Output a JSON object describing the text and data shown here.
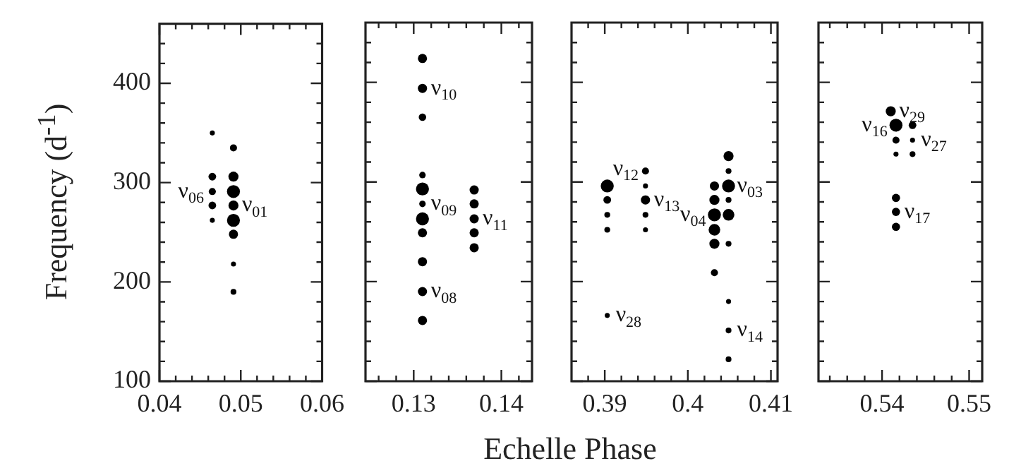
{
  "chart_data": [
    {
      "type": "bubble",
      "ylabel": "Frequency (d$^{-1}$)",
      "xlabel": "Echelle Phase",
      "color": "#000000",
      "x": [
        0.0465,
        0.0465,
        0.0465,
        0.0465,
        0.0465,
        0.0491,
        0.0491,
        0.0491,
        0.0491,
        0.0491,
        0.0491,
        0.0491,
        0.0491
      ],
      "values": [
        350,
        306,
        291,
        277,
        262,
        335,
        306,
        291,
        277,
        262,
        248,
        218,
        190
      ],
      "sizes": [
        0.15,
        0.35,
        0.3,
        0.35,
        0.15,
        0.3,
        0.6,
        1,
        0.6,
        1,
        0.5,
        0.15,
        0.2
      ],
      "xlim": [
        0.04,
        0.06
      ],
      "xticks": [
        0.04,
        {
          "value": 0.042,
          "label": null
        },
        {
          "value": 0.044,
          "label": null
        },
        {
          "value": 0.046,
          "label": null
        },
        {
          "value": 0.048,
          "label": null
        },
        0.05,
        {
          "value": 0.052,
          "label": null
        },
        {
          "value": 0.054,
          "label": null
        },
        {
          "value": 0.056,
          "label": null
        },
        {
          "value": 0.058,
          "label": null
        },
        0.06
      ],
      "ylim": [
        100,
        460
      ],
      "yticks": [
        100,
        {
          "value": 120,
          "label": null
        },
        {
          "value": 140,
          "label": null
        },
        {
          "value": 160,
          "label": null
        },
        {
          "value": 180,
          "label": null
        },
        200,
        {
          "value": 220,
          "label": null
        },
        {
          "value": 240,
          "label": null
        },
        {
          "value": 260,
          "label": null
        },
        {
          "value": 280,
          "label": null
        },
        300,
        {
          "value": 320,
          "label": null
        },
        {
          "value": 340,
          "label": null
        },
        {
          "value": 360,
          "label": null
        },
        {
          "value": 380,
          "label": null
        },
        400,
        {
          "value": 420,
          "label": null
        },
        {
          "value": 440,
          "label": null
        }
      ],
      "annotations": [
        {
          "text": "ν$_{06}$",
          "x": 0.0465,
          "y": 291
        },
        {
          "text": "ν$_{01}$",
          "x": 0.0491,
          "y": 277
        }
      ]
    },
    {
      "type": "bubble",
      "color": "#000000",
      "tick_labels": "x",
      "x": [
        0.131,
        0.131,
        0.131,
        0.131,
        0.131,
        0.131,
        0.131,
        0.131,
        0.131,
        0.131,
        0.131,
        0.1369,
        0.1369,
        0.1369,
        0.1369,
        0.1369
      ],
      "values": [
        424,
        394,
        365,
        307,
        293,
        278,
        263,
        249,
        220,
        190,
        161,
        292,
        278,
        263,
        249,
        234
      ],
      "sizes": [
        0.5,
        0.5,
        0.33,
        0.25,
        1,
        0.25,
        1,
        0.5,
        0.5,
        0.5,
        0.5,
        0.5,
        0.5,
        0.5,
        0.5,
        0.5
      ],
      "xlim": [
        0.1245,
        0.1435
      ],
      "xticks": [
        {
          "value": 0.126,
          "label": null
        },
        {
          "value": 0.128,
          "label": null
        },
        0.13,
        {
          "value": 0.132,
          "label": null
        },
        {
          "value": 0.134,
          "label": null
        },
        {
          "value": 0.136,
          "label": null
        },
        {
          "value": 0.138,
          "label": null
        },
        0.14,
        {
          "value": 0.142,
          "label": null
        }
      ],
      "ylim": [
        100,
        460
      ],
      "yticks": [
        100,
        {
          "value": 120,
          "label": null
        },
        {
          "value": 140,
          "label": null
        },
        {
          "value": 160,
          "label": null
        },
        {
          "value": 180,
          "label": null
        },
        200,
        {
          "value": 220,
          "label": null
        },
        {
          "value": 240,
          "label": null
        },
        {
          "value": 260,
          "label": null
        },
        {
          "value": 280,
          "label": null
        },
        300,
        {
          "value": 320,
          "label": null
        },
        {
          "value": 340,
          "label": null
        },
        {
          "value": 360,
          "label": null
        },
        {
          "value": 380,
          "label": null
        },
        400,
        {
          "value": 420,
          "label": null
        },
        {
          "value": 440,
          "label": null
        }
      ],
      "annotations": [
        {
          "text": "ν$_{10}$",
          "x": 0.131,
          "y": 394
        },
        {
          "text": "ν$_{09}$",
          "x": 0.131,
          "y": 278
        },
        {
          "text": "ν$_{08}$",
          "x": 0.131,
          "y": 190
        },
        {
          "text": "ν$_{11}$",
          "x": 0.1369,
          "y": 263
        }
      ]
    },
    {
      "type": "bubble",
      "color": "#000000",
      "tick_labels": "x",
      "x": [
        0.3903,
        0.3903,
        0.3903,
        0.3903,
        0.3903,
        0.3949,
        0.3949,
        0.3949,
        0.3949,
        0.3949,
        0.4032,
        0.4032,
        0.4032,
        0.4032,
        0.4032,
        0.4032,
        0.4049,
        0.4049,
        0.4049,
        0.4049,
        0.4049,
        0.4049,
        0.4049,
        0.4049,
        0.4049
      ],
      "values": [
        296,
        282,
        267,
        252,
        166,
        311,
        296,
        282,
        267,
        252,
        296,
        282,
        267,
        252,
        238,
        209,
        326,
        311,
        296,
        282,
        267,
        238,
        180,
        151,
        122
      ],
      "sizes": [
        1,
        0.35,
        0.2,
        0.2,
        0.15,
        0.3,
        0.15,
        0.5,
        0.2,
        0.15,
        0.5,
        0.6,
        1,
        0.8,
        0.6,
        0.3,
        0.6,
        0.2,
        1,
        0.2,
        0.8,
        0.2,
        0.15,
        0.2,
        0.2
      ],
      "xlim": [
        0.386,
        0.4108
      ],
      "xticks": [
        {
          "value": 0.388,
          "label": null
        },
        0.39,
        {
          "value": 0.392,
          "label": null
        },
        {
          "value": 0.394,
          "label": null
        },
        {
          "value": 0.396,
          "label": null
        },
        {
          "value": 0.398,
          "label": null
        },
        0.4,
        {
          "value": 0.402,
          "label": null
        },
        {
          "value": 0.404,
          "label": null
        },
        {
          "value": 0.406,
          "label": null
        },
        {
          "value": 0.408,
          "label": null
        },
        0.41
      ],
      "ylim": [
        100,
        460
      ],
      "yticks": [
        100,
        {
          "value": 120,
          "label": null
        },
        {
          "value": 140,
          "label": null
        },
        {
          "value": 160,
          "label": null
        },
        {
          "value": 180,
          "label": null
        },
        200,
        {
          "value": 220,
          "label": null
        },
        {
          "value": 240,
          "label": null
        },
        {
          "value": 260,
          "label": null
        },
        {
          "value": 280,
          "label": null
        },
        300,
        {
          "value": 320,
          "label": null
        },
        {
          "value": 340,
          "label": null
        },
        {
          "value": 360,
          "label": null
        },
        {
          "value": 380,
          "label": null
        },
        400,
        {
          "value": 420,
          "label": null
        },
        {
          "value": 440,
          "label": null
        }
      ],
      "annotations": [
        {
          "text": "ν$_{12}$",
          "x": 0.3903,
          "y": 296
        },
        {
          "text": "ν$_{13}$",
          "x": 0.3949,
          "y": 282
        },
        {
          "text": "ν$_{04}$",
          "x": 0.4032,
          "y": 267
        },
        {
          "text": "ν$_{03}$",
          "x": 0.4049,
          "y": 296
        },
        {
          "text": "ν$_{28}$",
          "x": 0.3903,
          "y": 166
        },
        {
          "text": "ν$_{14}$",
          "x": 0.4049,
          "y": 151
        }
      ]
    },
    {
      "type": "bubble",
      "color": "#000000",
      "tick_labels": "x",
      "x": [
        0.541,
        0.5416,
        0.5416,
        0.5416,
        0.5416,
        0.5416,
        0.5416,
        0.5435,
        0.5435,
        0.5435
      ],
      "values": [
        371,
        357,
        342,
        328,
        284,
        270,
        255,
        357,
        342,
        328
      ],
      "sizes": [
        0.6,
        1,
        0.3,
        0.15,
        0.4,
        0.4,
        0.4,
        0.35,
        0.15,
        0.2
      ],
      "xlim": [
        0.5327,
        0.5515
      ],
      "xticks": [
        {
          "value": 0.534,
          "label": null
        },
        {
          "value": 0.536,
          "label": null
        },
        {
          "value": 0.538,
          "label": null
        },
        0.54,
        {
          "value": 0.542,
          "label": null
        },
        {
          "value": 0.544,
          "label": null
        },
        {
          "value": 0.546,
          "label": null
        },
        {
          "value": 0.548,
          "label": null
        },
        0.55
      ],
      "ylim": [
        100,
        460
      ],
      "yticks": [
        100,
        {
          "value": 120,
          "label": null
        },
        {
          "value": 140,
          "label": null
        },
        {
          "value": 160,
          "label": null
        },
        {
          "value": 180,
          "label": null
        },
        200,
        {
          "value": 220,
          "label": null
        },
        {
          "value": 240,
          "label": null
        },
        {
          "value": 260,
          "label": null
        },
        {
          "value": 280,
          "label": null
        },
        300,
        {
          "value": 320,
          "label": null
        },
        {
          "value": 340,
          "label": null
        },
        {
          "value": 360,
          "label": null
        },
        {
          "value": 380,
          "label": null
        },
        400,
        {
          "value": 420,
          "label": null
        },
        {
          "value": 440,
          "label": null
        }
      ],
      "annotations": [
        {
          "text": "ν$_{29}$",
          "x": 0.541,
          "y": 371
        },
        {
          "text": "ν$_{16}$",
          "x": 0.5416,
          "y": 357
        },
        {
          "text": "ν$_{27}$",
          "x": 0.5435,
          "y": 342
        },
        {
          "text": "ν$_{17}$",
          "x": 0.5416,
          "y": 270
        }
      ]
    }
  ]
}
